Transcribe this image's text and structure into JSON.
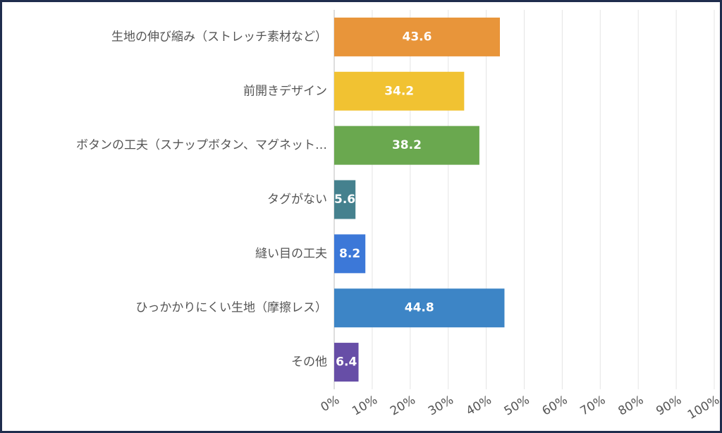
{
  "chart_data": {
    "type": "bar",
    "orientation": "horizontal",
    "categories": [
      "生地の伸び縮み（ストレッチ素材など）",
      "前開きデザイン",
      "ボタンの工夫（スナップボタン、マグネット…",
      "タグがない",
      "縫い目の工夫",
      "ひっかかりにくい生地（摩擦レス）",
      "その他"
    ],
    "values": [
      43.6,
      34.2,
      38.2,
      5.6,
      8.2,
      44.8,
      6.4
    ],
    "colors": [
      "#e8953a",
      "#f1c232",
      "#6aa84f",
      "#45818e",
      "#3c78d8",
      "#3d85c6",
      "#674ea7"
    ],
    "xlim": [
      0,
      100
    ],
    "xticks": [
      {
        "value": 0,
        "label": "0%"
      },
      {
        "value": 10,
        "label": "10%"
      },
      {
        "value": 20,
        "label": "20%"
      },
      {
        "value": 30,
        "label": "30%"
      },
      {
        "value": 40,
        "label": "40%"
      },
      {
        "value": 50,
        "label": "50%"
      },
      {
        "value": 60,
        "label": "60%"
      },
      {
        "value": 70,
        "label": "70%"
      },
      {
        "value": 80,
        "label": "80%"
      },
      {
        "value": 90,
        "label": "90%"
      },
      {
        "value": 100,
        "label": "100%"
      }
    ],
    "grid": true
  }
}
